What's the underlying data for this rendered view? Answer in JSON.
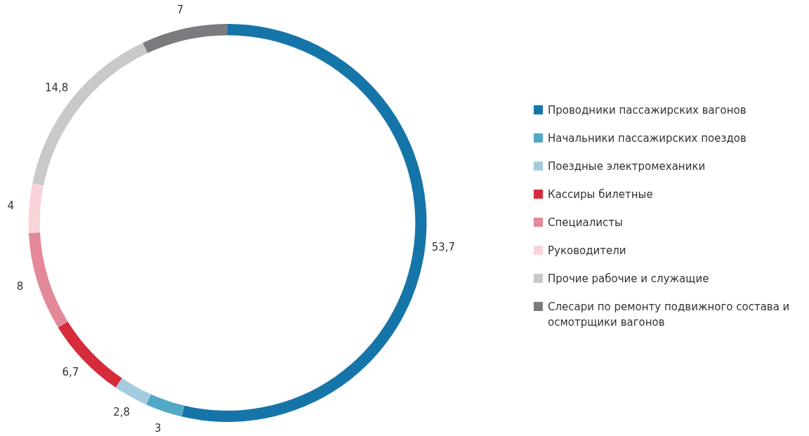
{
  "chart_data": {
    "type": "donut",
    "categories": [
      "Проводники пассажирских вагонов",
      "Начальники пассажирских поездов",
      "Поездные электромеханики",
      "Кассиры билетные",
      "Специалисты",
      "Руководители",
      "Прочие рабочие и служащие",
      "Слесари по ремонту подвижного состава и осмотрщики вагонов"
    ],
    "values": [
      53.7,
      3,
      2.8,
      6.7,
      8,
      4,
      14.8,
      7
    ],
    "value_labels": [
      "53,7",
      "3",
      "2,8",
      "6,7",
      "8",
      "4",
      "14,8",
      "7"
    ],
    "colors": [
      "#1675a8",
      "#52a9c7",
      "#a5cbe0",
      "#d52b3b",
      "#e3899a",
      "#f8d4d9",
      "#c9c9cb",
      "#7b7b7f"
    ],
    "legend": "right"
  }
}
